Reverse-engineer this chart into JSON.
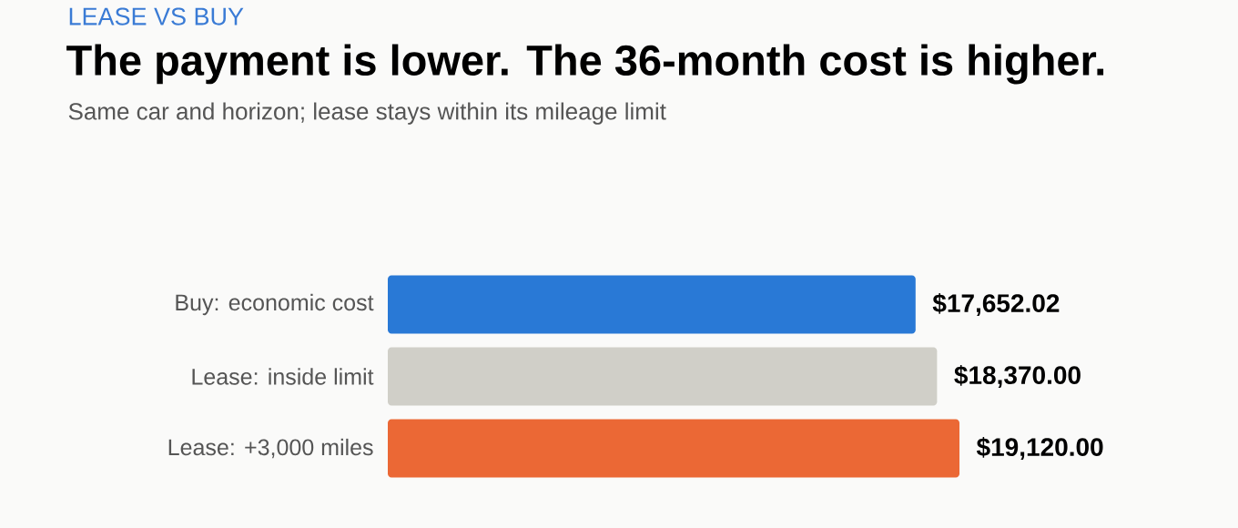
{
  "chart_data": {
    "type": "bar",
    "orientation": "horizontal",
    "title": "The payment is lower. The 36-month cost is higher.",
    "subtitle": "Same car and horizon; lease stays within its mileage limit",
    "annotations": [
      "LEASE VS BUY"
    ],
    "categories": [
      "Buy: economic cost",
      "Lease: inside limit",
      "Lease: +3,000 miles"
    ],
    "values": [
      17652.02,
      18370.0,
      19120.0
    ],
    "value_labels": [
      "$17,652.02",
      "$18,370.00",
      "$19,120.00"
    ],
    "colors": [
      "#2979d6",
      "#d0cfc8",
      "#eb6835"
    ],
    "tick_labels": "y"
  }
}
